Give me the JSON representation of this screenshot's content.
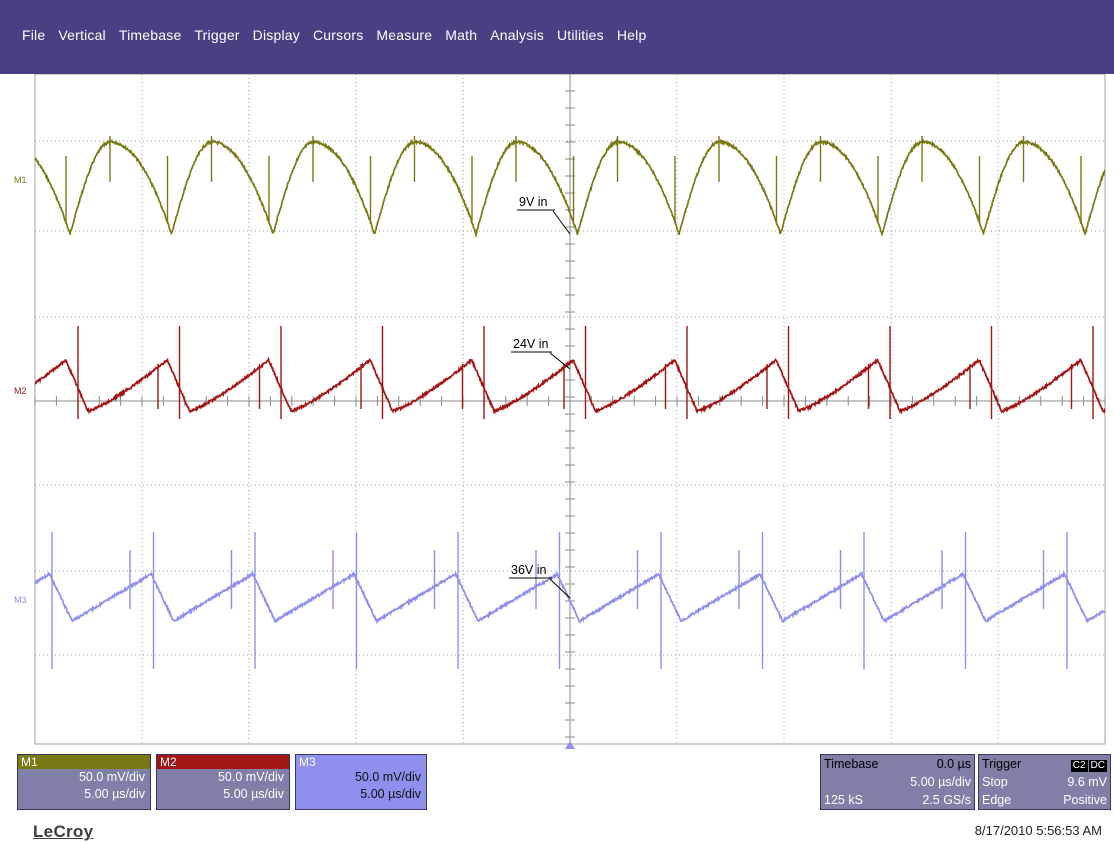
{
  "menu": [
    "File",
    "Vertical",
    "Timebase",
    "Trigger",
    "Display",
    "Cursors",
    "Measure",
    "Math",
    "Analysis",
    "Utilities",
    "Help"
  ],
  "traces": [
    {
      "id": "M1",
      "annotation": "9V in",
      "color": "#7a7a14"
    },
    {
      "id": "M2",
      "annotation": "24V in",
      "color": "#a31515"
    },
    {
      "id": "M3",
      "annotation": "36V in",
      "color": "#8f8fee"
    }
  ],
  "channels": [
    {
      "label": "M1",
      "vdiv": "50.0 mV/div",
      "tdiv": "5.00 µs/div",
      "tab_color": "#7a7a14"
    },
    {
      "label": "M2",
      "vdiv": "50.0 mV/div",
      "tdiv": "5.00 µs/div",
      "tab_color": "#a31515"
    },
    {
      "label": "M3",
      "vdiv": "50.0 mV/div",
      "tdiv": "5.00 µs/div",
      "tab_color": "#8f8fee"
    }
  ],
  "timebase": {
    "label": "Timebase",
    "delay": "0.0 µs",
    "tdiv": "5.00 µs/div",
    "samples": "125 kS",
    "rate": "2.5 GS/s"
  },
  "trigger": {
    "label": "Trigger",
    "badge1": "C2",
    "badge2": "DC",
    "mode": "Stop",
    "level": "9.6 mV",
    "type": "Edge",
    "slope": "Positive"
  },
  "brand": "LeCroy",
  "timestamp": "8/17/2010 5:56:53 AM"
}
